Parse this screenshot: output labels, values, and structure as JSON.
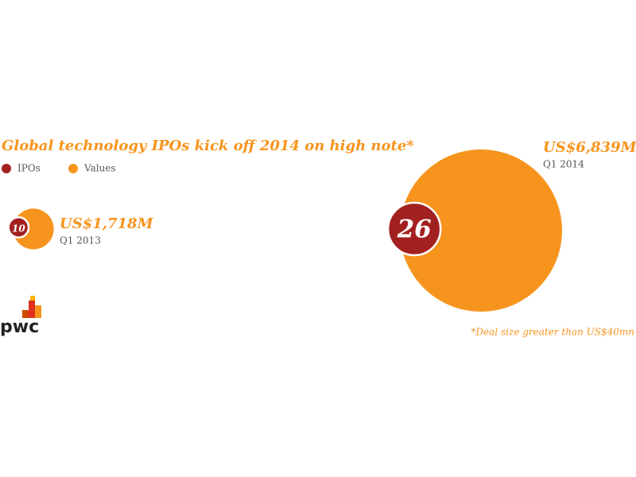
{
  "chart_data": {
    "type": "bubble",
    "title": "Global technology IPOs kick off 2014 on high note*",
    "categories": [
      "Q1 2013",
      "Q1 2014"
    ],
    "series": [
      {
        "name": "IPOs",
        "color": "#a32020",
        "values": [
          10,
          26
        ]
      },
      {
        "name": "Values",
        "color": "#f7941d",
        "values": [
          1718,
          6839
        ],
        "value_labels": [
          "US$1,718M",
          "US$6,839M"
        ]
      }
    ],
    "annotation": "*Deal size greater than US$40mn",
    "logo": "pwc"
  }
}
